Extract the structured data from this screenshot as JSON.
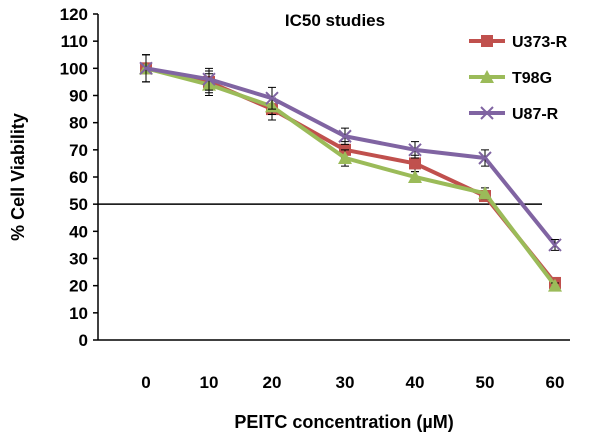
{
  "chart_data": {
    "type": "line",
    "title": "IC50 studies",
    "xlabel": "PEITC concentration (µM)",
    "ylabel": "% Cell Viability",
    "x": [
      0,
      10,
      20,
      30,
      40,
      50,
      60
    ],
    "x_tick_labels": [
      "0",
      "10",
      "20",
      "30",
      "40",
      "50",
      "60"
    ],
    "ylim": [
      0,
      120
    ],
    "y_tick_labels": [
      "0",
      "10",
      "20",
      "30",
      "40",
      "50",
      "60",
      "70",
      "80",
      "90",
      "100",
      "110",
      "120"
    ],
    "reference_line": {
      "y": 50,
      "color": "#000000"
    },
    "grid": false,
    "legend_position": "top-right",
    "series": [
      {
        "name": "U373-R",
        "color": "#c0504d",
        "marker": "square",
        "values": [
          100,
          95,
          85,
          70,
          65,
          53,
          21
        ],
        "errors": [
          5,
          4,
          4,
          3,
          3,
          2,
          1
        ]
      },
      {
        "name": "T98G",
        "color": "#9bbb59",
        "marker": "triangle",
        "values": [
          100,
          94,
          86,
          67,
          60,
          54,
          20
        ],
        "errors": [
          5,
          4,
          3,
          3,
          2,
          2,
          1
        ]
      },
      {
        "name": "U87-R",
        "color": "#8064a2",
        "marker": "x",
        "values": [
          100,
          96,
          89,
          75,
          70,
          67,
          35
        ],
        "errors": [
          5,
          4,
          4,
          3,
          3,
          3,
          2
        ]
      }
    ]
  }
}
